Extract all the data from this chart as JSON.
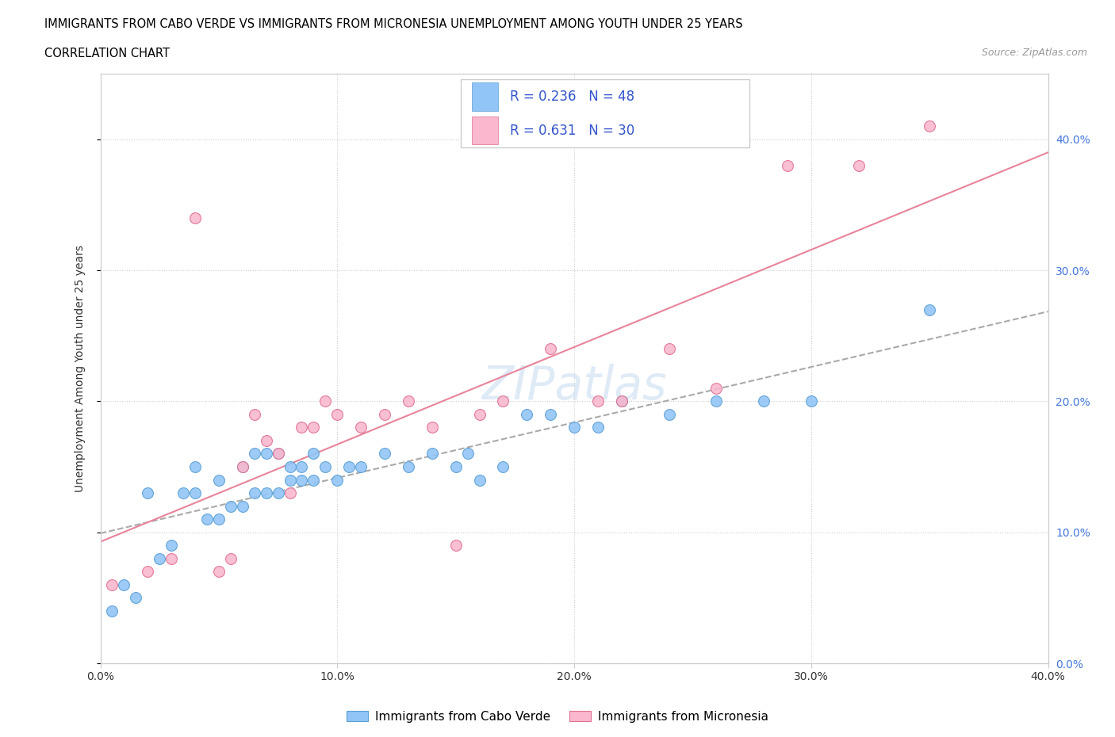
{
  "title_line1": "IMMIGRANTS FROM CABO VERDE VS IMMIGRANTS FROM MICRONESIA UNEMPLOYMENT AMONG YOUTH UNDER 25 YEARS",
  "title_line2": "CORRELATION CHART",
  "source_text": "Source: ZipAtlas.com",
  "ylabel": "Unemployment Among Youth under 25 years",
  "xlim": [
    0.0,
    0.4
  ],
  "ylim": [
    0.0,
    0.45
  ],
  "ytick_values": [
    0.0,
    0.1,
    0.2,
    0.3,
    0.4
  ],
  "xtick_values": [
    0.0,
    0.1,
    0.2,
    0.3,
    0.4
  ],
  "cabo_verde_color": "#92c5f7",
  "cabo_verde_edge": "#5a9fd4",
  "micronesia_color": "#f9b8ce",
  "micronesia_edge": "#e07090",
  "cabo_verde_R": 0.236,
  "cabo_verde_N": 48,
  "micronesia_R": 0.631,
  "micronesia_N": 30,
  "trend_gray_color": "#aaaaaa",
  "trend_pink_color": "#e8849a",
  "legend_label_blue": "Immigrants from Cabo Verde",
  "legend_label_pink": "Immigrants from Micronesia",
  "cabo_verde_x": [
    0.005,
    0.01,
    0.015,
    0.02,
    0.025,
    0.03,
    0.035,
    0.04,
    0.04,
    0.045,
    0.05,
    0.05,
    0.055,
    0.06,
    0.06,
    0.065,
    0.065,
    0.07,
    0.07,
    0.075,
    0.075,
    0.08,
    0.08,
    0.085,
    0.085,
    0.09,
    0.09,
    0.095,
    0.1,
    0.105,
    0.11,
    0.12,
    0.13,
    0.14,
    0.15,
    0.155,
    0.16,
    0.17,
    0.18,
    0.19,
    0.2,
    0.21,
    0.22,
    0.24,
    0.26,
    0.28,
    0.3,
    0.35
  ],
  "cabo_verde_y": [
    0.04,
    0.06,
    0.05,
    0.13,
    0.08,
    0.09,
    0.13,
    0.13,
    0.15,
    0.11,
    0.11,
    0.14,
    0.12,
    0.12,
    0.15,
    0.13,
    0.16,
    0.13,
    0.16,
    0.13,
    0.16,
    0.14,
    0.15,
    0.14,
    0.15,
    0.14,
    0.16,
    0.15,
    0.14,
    0.15,
    0.15,
    0.16,
    0.15,
    0.16,
    0.15,
    0.16,
    0.14,
    0.15,
    0.19,
    0.19,
    0.18,
    0.18,
    0.2,
    0.19,
    0.2,
    0.2,
    0.2,
    0.27
  ],
  "micronesia_x": [
    0.005,
    0.02,
    0.03,
    0.04,
    0.05,
    0.055,
    0.06,
    0.065,
    0.07,
    0.075,
    0.08,
    0.085,
    0.09,
    0.095,
    0.1,
    0.11,
    0.12,
    0.13,
    0.14,
    0.15,
    0.16,
    0.17,
    0.19,
    0.21,
    0.22,
    0.24,
    0.26,
    0.29,
    0.32,
    0.35
  ],
  "micronesia_y": [
    0.06,
    0.07,
    0.08,
    0.34,
    0.07,
    0.08,
    0.15,
    0.19,
    0.17,
    0.16,
    0.13,
    0.18,
    0.18,
    0.2,
    0.19,
    0.18,
    0.19,
    0.2,
    0.18,
    0.09,
    0.19,
    0.2,
    0.24,
    0.2,
    0.2,
    0.24,
    0.21,
    0.38,
    0.38,
    0.41
  ]
}
